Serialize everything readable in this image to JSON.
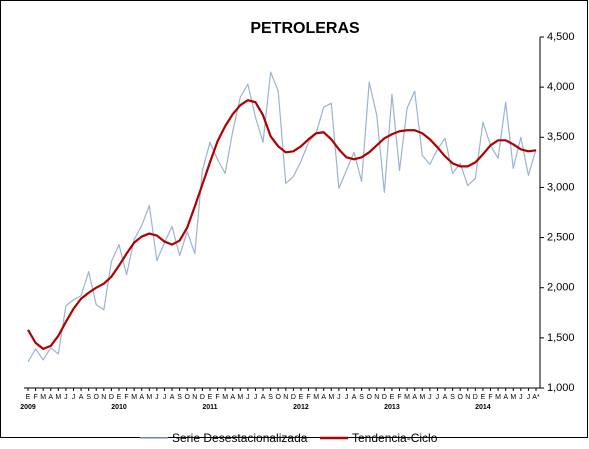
{
  "chart_data": {
    "type": "line",
    "title": "PETROLERAS",
    "categories": [
      "E",
      "F",
      "M",
      "A",
      "M",
      "J",
      "J",
      "A",
      "S",
      "O",
      "N",
      "D",
      "E",
      "F",
      "M",
      "A",
      "M",
      "J",
      "J",
      "A",
      "S",
      "O",
      "N",
      "D",
      "E",
      "F",
      "M",
      "A",
      "M",
      "J",
      "J",
      "A",
      "S",
      "O",
      "N",
      "D",
      "E",
      "F",
      "M",
      "A",
      "M",
      "J",
      "J",
      "A",
      "S",
      "O",
      "N",
      "D",
      "E",
      "F",
      "M",
      "A",
      "M",
      "J",
      "J",
      "A",
      "S",
      "O",
      "N",
      "D",
      "E",
      "F",
      "M",
      "A",
      "M",
      "J",
      "J",
      "A*"
    ],
    "years": [
      "2009",
      "2010",
      "2011",
      "2012",
      "2013",
      "2014"
    ],
    "series": [
      {
        "name": "Serie Desestacionalizada",
        "color": "#9ab3d5",
        "values": [
          1260,
          1390,
          1280,
          1400,
          1340,
          1820,
          1880,
          1920,
          2160,
          1830,
          1780,
          2260,
          2430,
          2130,
          2480,
          2620,
          2820,
          2270,
          2450,
          2610,
          2320,
          2560,
          2340,
          3170,
          3450,
          3280,
          3140,
          3560,
          3900,
          4030,
          3700,
          3450,
          4150,
          3960,
          3040,
          3110,
          3260,
          3450,
          3540,
          3800,
          3840,
          2990,
          3170,
          3350,
          3060,
          4050,
          3720,
          2950,
          3930,
          3170,
          3790,
          3960,
          3320,
          3230,
          3380,
          3490,
          3140,
          3240,
          3020,
          3090,
          3650,
          3420,
          3290,
          3850,
          3190,
          3500,
          3120,
          3380
        ]
      },
      {
        "name": "Tendencia-Ciclo",
        "color": "#b00000",
        "values": [
          1580,
          1450,
          1390,
          1420,
          1520,
          1660,
          1790,
          1890,
          1950,
          2000,
          2040,
          2110,
          2220,
          2340,
          2450,
          2510,
          2540,
          2520,
          2460,
          2430,
          2470,
          2600,
          2810,
          3030,
          3250,
          3460,
          3610,
          3730,
          3820,
          3870,
          3850,
          3720,
          3510,
          3410,
          3350,
          3360,
          3410,
          3480,
          3540,
          3550,
          3480,
          3380,
          3300,
          3280,
          3300,
          3350,
          3420,
          3490,
          3530,
          3560,
          3570,
          3570,
          3540,
          3480,
          3400,
          3310,
          3240,
          3210,
          3210,
          3250,
          3330,
          3420,
          3470,
          3470,
          3430,
          3380,
          3360,
          3370
        ]
      }
    ],
    "ylim": [
      1000,
      4500
    ],
    "yticks": [
      {
        "value": 1000,
        "label": "1,000"
      },
      {
        "value": 1500,
        "label": "1,500"
      },
      {
        "value": 2000,
        "label": "2,000"
      },
      {
        "value": 2500,
        "label": "2,500"
      },
      {
        "value": 3000,
        "label": "3,000"
      },
      {
        "value": 3500,
        "label": "3,500"
      },
      {
        "value": 4000,
        "label": "4,000"
      },
      {
        "value": 4500,
        "label": "4,500"
      }
    ],
    "grid": false
  }
}
